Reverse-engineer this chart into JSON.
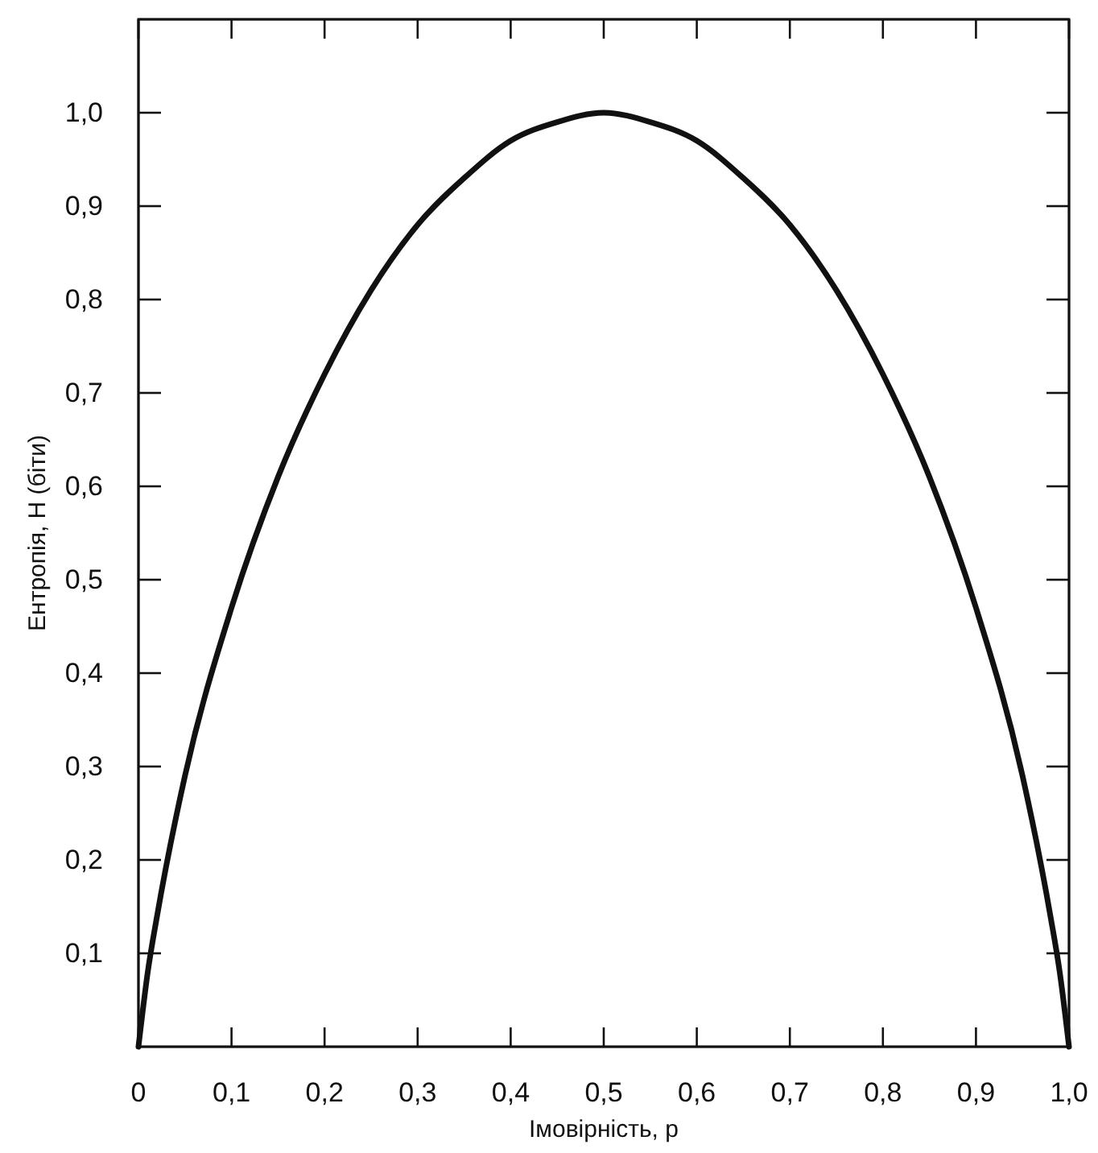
{
  "chart_data": {
    "type": "line",
    "xlabel": "Імовірність, p",
    "ylabel": "Ентропія, H (біти)",
    "x": [
      0,
      0.01,
      0.02,
      0.05,
      0.1,
      0.15,
      0.2,
      0.25,
      0.3,
      0.35,
      0.4,
      0.45,
      0.5,
      0.55,
      0.6,
      0.65,
      0.7,
      0.75,
      0.8,
      0.85,
      0.9,
      0.95,
      0.98,
      0.99,
      1
    ],
    "series": [
      {
        "color": "#111111",
        "values": [
          0,
          0.08,
          0.14,
          0.29,
          0.47,
          0.61,
          0.72,
          0.81,
          0.88,
          0.93,
          0.97,
          0.99,
          1.0,
          0.99,
          0.97,
          0.93,
          0.88,
          0.81,
          0.72,
          0.61,
          0.47,
          0.29,
          0.14,
          0.08,
          0
        ]
      }
    ],
    "xlim": [
      0,
      1
    ],
    "ylim": [
      0,
      1.1
    ],
    "xticks": [
      {
        "value": 0,
        "label": "0"
      },
      {
        "value": 0.1,
        "label": "0,1"
      },
      {
        "value": 0.2,
        "label": "0,2"
      },
      {
        "value": 0.3,
        "label": "0,3"
      },
      {
        "value": 0.4,
        "label": "0,4"
      },
      {
        "value": 0.5,
        "label": "0,5"
      },
      {
        "value": 0.6,
        "label": "0,6"
      },
      {
        "value": 0.7,
        "label": "0,7"
      },
      {
        "value": 0.8,
        "label": "0,8"
      },
      {
        "value": 0.9,
        "label": "0,9"
      },
      {
        "value": 1,
        "label": "1,0"
      }
    ],
    "yticks": [
      {
        "value": 0.1,
        "label": "0,1"
      },
      {
        "value": 0.2,
        "label": "0,2"
      },
      {
        "value": 0.3,
        "label": "0,3"
      },
      {
        "value": 0.4,
        "label": "0,4"
      },
      {
        "value": 0.5,
        "label": "0,5"
      },
      {
        "value": 0.6,
        "label": "0,6"
      },
      {
        "value": 0.7,
        "label": "0,7"
      },
      {
        "value": 0.8,
        "label": "0,8"
      },
      {
        "value": 0.9,
        "label": "0,9"
      },
      {
        "value": 1,
        "label": "1,0"
      }
    ],
    "marker": "none",
    "line_style": "solid"
  }
}
